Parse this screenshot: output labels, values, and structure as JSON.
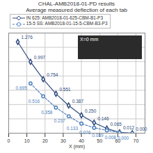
{
  "chart_data": {
    "type": "line",
    "title": "CHAL-AMB2018-01-PD results",
    "subtitle": "Average measured deflection of each tab",
    "x_label": "X (mm)",
    "annotations": [
      "X=0 mm"
    ],
    "xlim": [
      0,
      75
    ],
    "xticks": [
      0,
      10,
      20,
      30,
      40,
      50,
      60,
      70
    ],
    "ylim": [
      0,
      1.4
    ],
    "yticks": [
      0,
      0.2,
      0.4,
      0.6,
      0.8,
      1.0,
      1.2,
      1.4
    ],
    "grid": true,
    "tick_labels": "x",
    "data_labels": true,
    "legend": "top-left",
    "x": [
      5,
      12,
      19,
      26,
      33,
      40,
      47,
      54,
      61,
      68
    ],
    "series": [
      {
        "name": "IN 625: AMB2018-01-625-CBM-B1-P3",
        "color": "#2e4a7d",
        "marker": "diamond",
        "line_style": "solid",
        "values": [
          1.276,
          0.997,
          0.754,
          0.551,
          0.387,
          0.25,
          0.146,
          0.065,
          0.012,
          0
        ],
        "value_labels": [
          "1.276",
          "0.997",
          "0.754",
          "0.551",
          "0.387",
          "0.250",
          "0.146",
          "0.065",
          "0.012",
          "0.000"
        ]
      },
      {
        "name": "15-5 SS: AMB2018-01-15-5-CBM-B3-P3",
        "color": "#4f81bd",
        "marker": "circle",
        "line_style": "dashed",
        "values": [
          null,
          0.695,
          0.516,
          0.358,
          0.237,
          0.133,
          0.076,
          0.039,
          0.008,
          0
        ],
        "value_labels": [
          null,
          "0.695",
          "0.516",
          "0.358",
          "0.237",
          "0.133",
          "0.076",
          "0.039",
          "0.008",
          "0.000"
        ]
      }
    ]
  }
}
